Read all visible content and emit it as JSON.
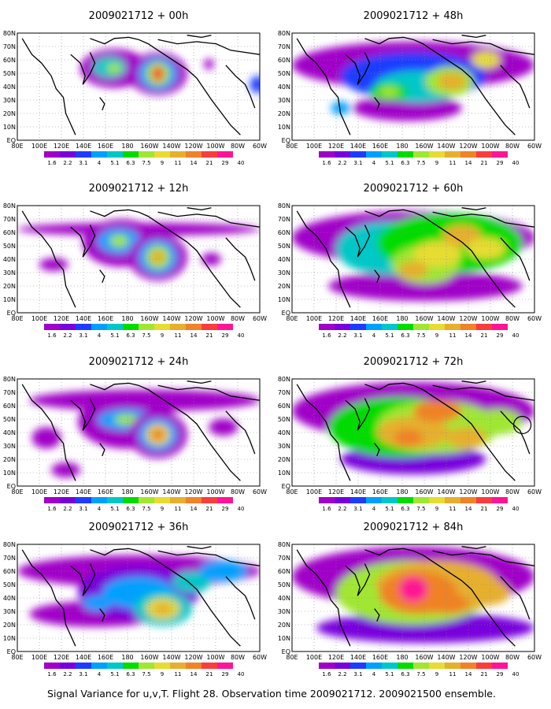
{
  "caption": "Signal Variance for u,v,T. Flight 28. Observation time 2009021712. 2009021500 ensemble.",
  "lat_labels": [
    "80N",
    "70N",
    "60N",
    "50N",
    "40N",
    "30N",
    "20N",
    "10N",
    "EQ"
  ],
  "lon_labels": [
    "80E",
    "100E",
    "120E",
    "140E",
    "160E",
    "180",
    "160W",
    "140W",
    "120W",
    "100W",
    "80W",
    "60W"
  ],
  "colorbar": {
    "values": [
      "1.6",
      "2.2",
      "3.1",
      "4",
      "5.1",
      "6.3",
      "7.5",
      "9",
      "11",
      "14",
      "21",
      "29",
      "40"
    ],
    "colors": [
      "#a000c8",
      "#7800dc",
      "#1e3cff",
      "#00a0ff",
      "#00c8c8",
      "#00dc00",
      "#a0e632",
      "#e6dc32",
      "#e6af2d",
      "#f08228",
      "#fa3c3c",
      "#ff1493"
    ]
  },
  "panels": [
    {
      "title": "2009021712 + 00h",
      "lead_hours": 0
    },
    {
      "title": "2009021712 + 12h",
      "lead_hours": 12
    },
    {
      "title": "2009021712 + 24h",
      "lead_hours": 24
    },
    {
      "title": "2009021712 + 36h",
      "lead_hours": 36
    },
    {
      "title": "2009021712 + 48h",
      "lead_hours": 48
    },
    {
      "title": "2009021712 + 60h",
      "lead_hours": 60
    },
    {
      "title": "2009021712 + 72h",
      "lead_hours": 72
    },
    {
      "title": "2009021712 + 84h",
      "lead_hours": 84
    }
  ]
}
